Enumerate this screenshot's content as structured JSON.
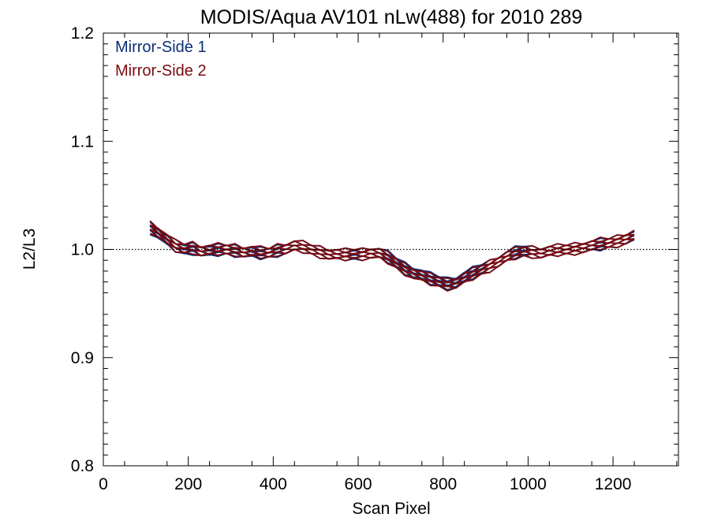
{
  "chart_data": {
    "type": "line",
    "title": "MODIS/Aqua AV101 nLw(488) for 2010 289",
    "xlabel": "Scan Pixel",
    "ylabel": "L2/L3",
    "xlim": [
      0,
      1354
    ],
    "ylim": [
      0.8,
      1.2
    ],
    "xticks": [
      0,
      200,
      400,
      600,
      800,
      1000,
      1200
    ],
    "yticks": [
      0.8,
      0.9,
      1.0,
      1.1,
      1.2
    ],
    "x_tick_labels": [
      "0",
      "200",
      "400",
      "600",
      "800",
      "1000",
      "1200"
    ],
    "y_tick_labels": [
      "0.8",
      "0.9",
      "1.0",
      "1.1",
      "1.2"
    ],
    "reference_line": {
      "y": 1.0,
      "style": "dotted"
    },
    "grid": false,
    "legend_position": "top-left",
    "x": [
      110,
      130,
      150,
      170,
      190,
      210,
      230,
      250,
      270,
      290,
      310,
      330,
      350,
      370,
      390,
      410,
      430,
      450,
      470,
      490,
      510,
      530,
      550,
      570,
      590,
      610,
      630,
      650,
      670,
      690,
      710,
      730,
      750,
      770,
      790,
      810,
      830,
      850,
      870,
      890,
      910,
      930,
      950,
      970,
      990,
      1010,
      1030,
      1050,
      1070,
      1090,
      1110,
      1130,
      1150,
      1170,
      1190,
      1210,
      1230,
      1250
    ],
    "series": [
      {
        "name": "Mirror-Side 1",
        "color": "#0c2f78",
        "values": [
          1.02,
          1.015,
          1.008,
          1.003,
          1.0,
          1.001,
          0.999,
          0.998,
          0.999,
          1.0,
          0.999,
          0.998,
          0.997,
          0.996,
          0.997,
          0.999,
          1.001,
          1.003,
          1.002,
          1.0,
          0.998,
          0.996,
          0.995,
          0.995,
          0.995,
          0.996,
          0.997,
          0.996,
          0.993,
          0.988,
          0.983,
          0.979,
          0.976,
          0.973,
          0.971,
          0.969,
          0.97,
          0.974,
          0.978,
          0.982,
          0.985,
          0.989,
          0.993,
          0.997,
          0.999,
          0.998,
          0.997,
          0.998,
          0.999,
          1.0,
          1.001,
          1.002,
          1.003,
          1.004,
          1.006,
          1.008,
          1.01,
          1.012
        ]
      },
      {
        "name": "Mirror-Side 2",
        "color": "#7a0a0f",
        "values": [
          1.021,
          1.016,
          1.009,
          1.003,
          1.001,
          1.002,
          0.999,
          0.999,
          1.0,
          1.0,
          1.0,
          0.998,
          0.998,
          0.997,
          0.997,
          1.0,
          1.001,
          1.003,
          1.002,
          1.0,
          0.998,
          0.996,
          0.995,
          0.995,
          0.996,
          0.996,
          0.997,
          0.996,
          0.992,
          0.987,
          0.982,
          0.978,
          0.975,
          0.972,
          0.97,
          0.968,
          0.969,
          0.973,
          0.977,
          0.981,
          0.985,
          0.989,
          0.993,
          0.996,
          0.998,
          0.998,
          0.997,
          0.998,
          0.999,
          1.0,
          1.001,
          1.002,
          1.003,
          1.005,
          1.006,
          1.008,
          1.01,
          1.013
        ]
      }
    ]
  }
}
